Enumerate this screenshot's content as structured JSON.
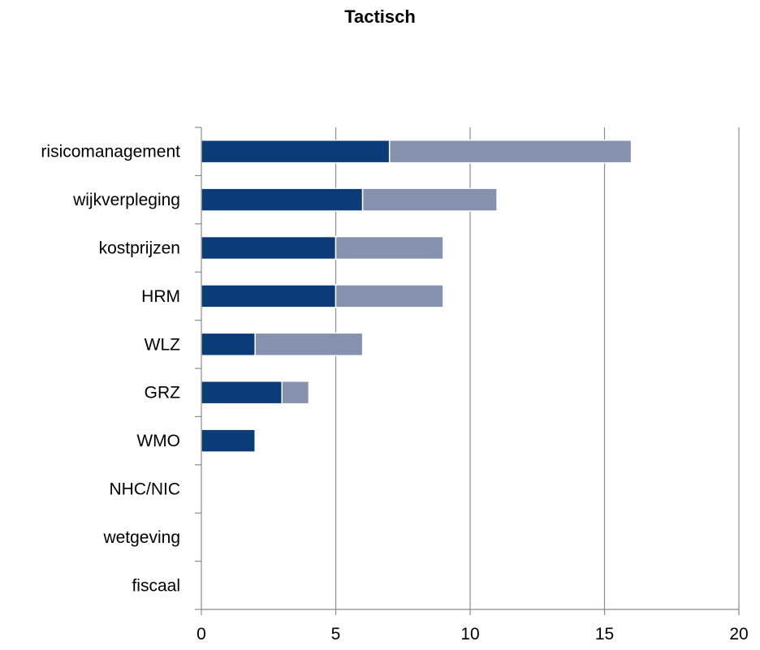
{
  "chart_data": {
    "type": "bar",
    "orientation": "horizontal",
    "stacked": true,
    "title": "Tactisch",
    "xlabel": "",
    "ylabel": "",
    "categories": [
      "risicomanagement",
      "wijkverpleging",
      "kostprijzen",
      "HRM",
      "WLZ",
      "GRZ",
      "WMO",
      "NHC/NIC",
      "wetgeving",
      "fiscaal"
    ],
    "series": [
      {
        "values": [
          7,
          6,
          5,
          5,
          2,
          3,
          2,
          0,
          0,
          0
        ],
        "color": "#0b3c78"
      },
      {
        "values": [
          9,
          5,
          4,
          4,
          4,
          1,
          0,
          0,
          0,
          0
        ],
        "color": "#8591ad"
      }
    ],
    "xlim": [
      0,
      20
    ],
    "xticks": [
      0,
      5,
      10,
      15,
      20
    ],
    "grid": true,
    "legend": "none"
  }
}
